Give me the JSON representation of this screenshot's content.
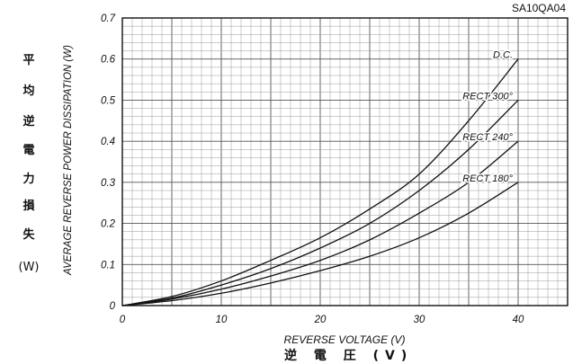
{
  "figure_code": "SA10QA04",
  "y_label_jp": [
    "平",
    "均",
    "逆",
    "電",
    "力",
    "損",
    "失"
  ],
  "y_unit_jp": "(W)",
  "x_label_jp": "逆 電 圧 (V)",
  "chart_data": {
    "type": "line",
    "title": "",
    "xlabel": "REVERSE VOLTAGE (V)",
    "ylabel": "AVERAGE REVERSE POWER DISSIPATION (W)",
    "xlim": [
      0,
      45
    ],
    "ylim": [
      0,
      0.7
    ],
    "xticks": [
      0,
      10,
      20,
      30,
      40
    ],
    "yticks": [
      0,
      0.1,
      0.2,
      0.3,
      0.4,
      0.5,
      0.6,
      0.7
    ],
    "xtick_labels": [
      "0",
      "10",
      "20",
      "30",
      "40"
    ],
    "ytick_labels": [
      "0",
      "0.1",
      "0.2",
      "0.3",
      "0.4",
      "0.5",
      "0.6",
      "0.7"
    ],
    "grid": true,
    "series": [
      {
        "name": "D.C.",
        "x": [
          0,
          5,
          10,
          15,
          20,
          25,
          30,
          35,
          40
        ],
        "y": [
          0,
          0.022,
          0.06,
          0.11,
          0.165,
          0.235,
          0.32,
          0.45,
          0.6
        ]
      },
      {
        "name": "RECT 300°",
        "x": [
          0,
          5,
          10,
          15,
          20,
          25,
          30,
          35,
          40
        ],
        "y": [
          0,
          0.018,
          0.05,
          0.09,
          0.14,
          0.2,
          0.28,
          0.38,
          0.5
        ]
      },
      {
        "name": "RECT 240°",
        "x": [
          0,
          5,
          10,
          15,
          20,
          25,
          30,
          35,
          40
        ],
        "y": [
          0,
          0.016,
          0.04,
          0.072,
          0.11,
          0.16,
          0.225,
          0.3,
          0.4
        ]
      },
      {
        "name": "RECT 180°",
        "x": [
          0,
          5,
          10,
          15,
          20,
          25,
          30,
          35,
          40
        ],
        "y": [
          0,
          0.012,
          0.03,
          0.055,
          0.085,
          0.12,
          0.165,
          0.225,
          0.3
        ]
      }
    ]
  }
}
